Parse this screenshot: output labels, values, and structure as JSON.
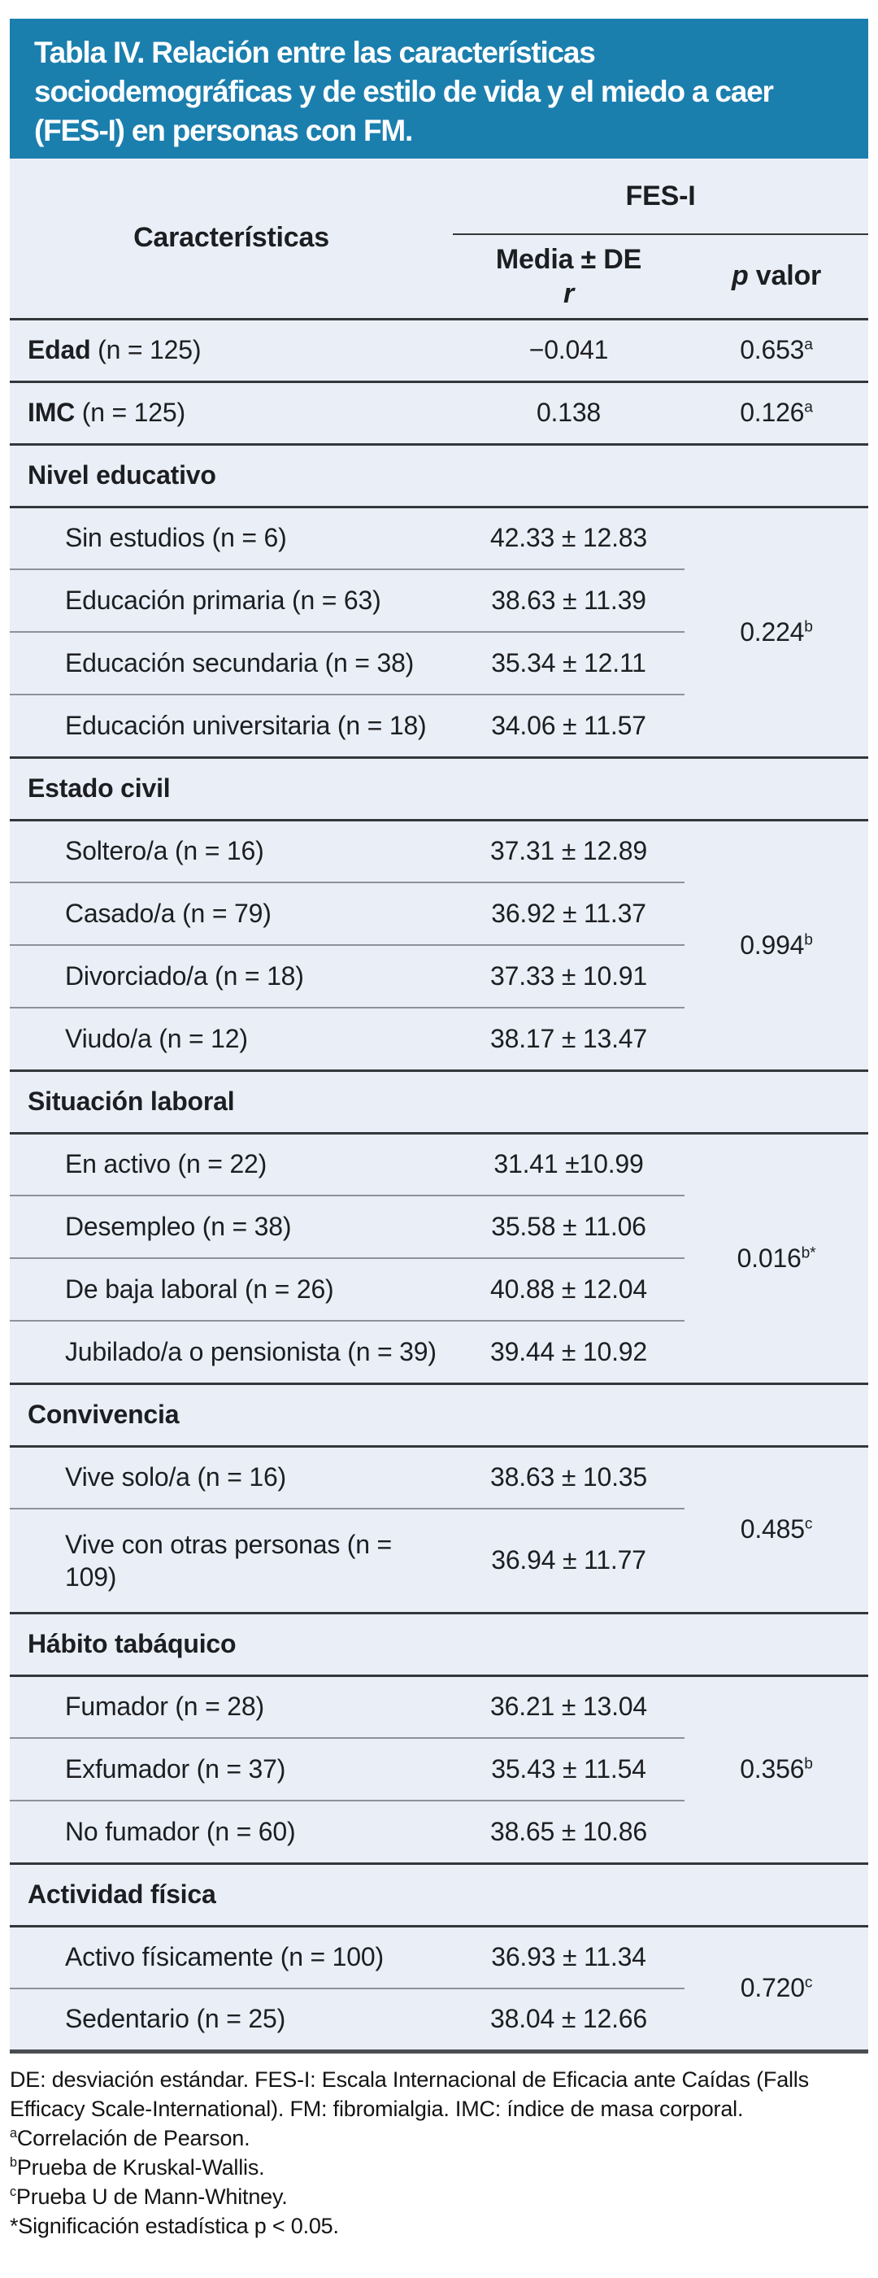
{
  "title": {
    "lines": [
      "Tabla IV. Relación entre las características",
      "sociodemográficas y de estilo de vida y el miedo a caer",
      "(FES-I) en personas con FM."
    ]
  },
  "header": {
    "characteristics": "Características",
    "group": "FES-I",
    "col2_line1": "Media ± DE",
    "col2_line2": "r",
    "col3_italic": "p",
    "col3_rest": " valor"
  },
  "main_rows": [
    {
      "bold": "Edad",
      "rest": " (n = 125)",
      "value": "−0.041",
      "p": "0.653",
      "p_sup": "a"
    },
    {
      "bold": "IMC",
      "rest": " (n = 125)",
      "value": "0.138",
      "p": "0.126",
      "p_sup": "a"
    }
  ],
  "sections": [
    {
      "header": "Nivel educativo",
      "p": "0.224",
      "p_sup": "b",
      "rows": [
        {
          "label": "Sin estudios (n = 6)",
          "value": "42.33 ± 12.83"
        },
        {
          "label": "Educación primaria (n = 63)",
          "value": "38.63 ± 11.39"
        },
        {
          "label": "Educación secundaria (n = 38)",
          "value": "35.34 ± 12.11"
        },
        {
          "label": "Educación universitaria (n = 18)",
          "value": "34.06 ± 11.57"
        }
      ]
    },
    {
      "header": "Estado civil",
      "p": "0.994",
      "p_sup": "b",
      "rows": [
        {
          "label": "Soltero/a (n = 16)",
          "value": "37.31 ± 12.89"
        },
        {
          "label": "Casado/a (n = 79)",
          "value": "36.92 ± 11.37"
        },
        {
          "label": "Divorciado/a (n = 18)",
          "value": "37.33 ± 10.91"
        },
        {
          "label": "Viudo/a (n = 12)",
          "value": "38.17 ± 13.47"
        }
      ]
    },
    {
      "header": "Situación laboral",
      "p": "0.016",
      "p_sup": "b*",
      "rows": [
        {
          "label": "En activo (n = 22)",
          "value": "31.41 ±10.99"
        },
        {
          "label": "Desempleo (n = 38)",
          "value": "35.58 ± 11.06"
        },
        {
          "label": "De baja laboral (n = 26)",
          "value": "40.88 ± 12.04"
        },
        {
          "label": "Jubilado/a o pensionista (n = 39)",
          "value": "39.44 ± 10.92"
        }
      ]
    },
    {
      "header": "Convivencia",
      "p": "0.485",
      "p_sup": "c",
      "rows": [
        {
          "label": "Vive solo/a (n = 16)",
          "value": "38.63 ± 10.35"
        },
        {
          "label": "Vive con otras personas (n = 109)",
          "value": "36.94 ± 11.77"
        }
      ]
    },
    {
      "header": "Hábito tabáquico",
      "p": "0.356",
      "p_sup": "b",
      "rows": [
        {
          "label": "Fumador (n = 28)",
          "value": "36.21 ± 13.04"
        },
        {
          "label": "Exfumador (n = 37)",
          "value": "35.43 ± 11.54"
        },
        {
          "label": "No fumador (n = 60)",
          "value": "38.65 ± 10.86"
        }
      ]
    },
    {
      "header": "Actividad física",
      "p": "0.720",
      "p_sup": "c",
      "rows": [
        {
          "label": "Activo físicamente (n = 100)",
          "value": "36.93 ± 11.34"
        },
        {
          "label": "Sedentario (n = 25)",
          "value": "38.04 ± 12.66"
        }
      ]
    }
  ],
  "footnotes": {
    "abbrev": "DE: desviación estándar. FES-I: Escala Internacional de Eficacia ante Caídas (Falls Efficacy Scale-International). FM: fibromialgia. IMC: índice de masa corporal.",
    "items": [
      {
        "sup": "a",
        "text": "Correlación de Pearson."
      },
      {
        "sup": "b",
        "text": "Prueba de Kruskal-Wallis."
      },
      {
        "sup": "c",
        "text": "Prueba U de Mann-Whitney."
      },
      {
        "sup": "",
        "text": "*Significación estadística p < 0.05."
      }
    ]
  },
  "colors": {
    "header_blue": "#1b7fae",
    "body_bg": "#eaeef6",
    "rule_dark": "#33373b",
    "rule_light": "#8d9199"
  }
}
